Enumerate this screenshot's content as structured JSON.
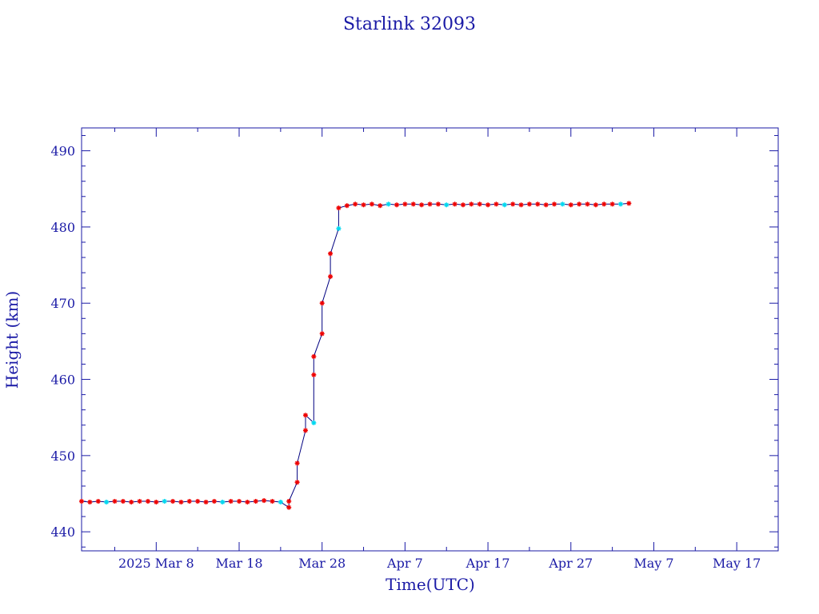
{
  "chart_data": {
    "type": "line",
    "title": "Starlink 32093",
    "xlabel": "Time(UTC)",
    "ylabel": "Height (km)",
    "x_tick_labels": [
      "2025 Mar  8",
      "Mar 18",
      "Mar 28",
      "Apr  7",
      "Apr 17",
      "Apr 27",
      "May  7",
      "May 17"
    ],
    "x_tick_values": [
      "2025-03-08",
      "2025-03-18",
      "2025-03-28",
      "2025-04-07",
      "2025-04-17",
      "2025-04-27",
      "2025-05-07",
      "2025-05-17"
    ],
    "xlim": [
      "2025-02-27",
      "2025-05-22"
    ],
    "y_tick_labels": [
      "440",
      "450",
      "460",
      "470",
      "480",
      "490"
    ],
    "y_ticks": [
      440,
      450,
      460,
      470,
      480,
      490
    ],
    "ylim": [
      437.5,
      493
    ],
    "grid": false,
    "colors": {
      "axes": "#1a1aa6",
      "line": "#000080",
      "marker_primary": "#ee0000",
      "marker_secondary": "#00d8f0"
    },
    "series": [
      {
        "x": [
          "2025-02-27",
          "2025-02-28",
          "2025-03-01",
          "2025-03-02",
          "2025-03-03",
          "2025-03-04",
          "2025-03-05",
          "2025-03-06",
          "2025-03-07",
          "2025-03-08",
          "2025-03-09",
          "2025-03-10",
          "2025-03-11",
          "2025-03-12",
          "2025-03-13",
          "2025-03-14",
          "2025-03-15",
          "2025-03-16",
          "2025-03-17",
          "2025-03-18",
          "2025-03-19",
          "2025-03-20",
          "2025-03-21",
          "2025-03-22",
          "2025-03-23",
          "2025-03-24",
          "2025-03-24",
          "2025-03-25",
          "2025-03-25",
          "2025-03-26",
          "2025-03-26",
          "2025-03-27",
          "2025-03-27",
          "2025-03-27",
          "2025-03-28",
          "2025-03-28",
          "2025-03-29",
          "2025-03-29",
          "2025-03-30",
          "2025-03-30",
          "2025-03-31",
          "2025-04-01",
          "2025-04-02",
          "2025-04-03",
          "2025-04-04",
          "2025-04-05",
          "2025-04-06",
          "2025-04-07",
          "2025-04-08",
          "2025-04-09",
          "2025-04-10",
          "2025-04-11",
          "2025-04-12",
          "2025-04-13",
          "2025-04-14",
          "2025-04-15",
          "2025-04-16",
          "2025-04-17",
          "2025-04-18",
          "2025-04-19",
          "2025-04-20",
          "2025-04-21",
          "2025-04-22",
          "2025-04-23",
          "2025-04-24",
          "2025-04-25",
          "2025-04-26",
          "2025-04-27",
          "2025-04-28",
          "2025-04-29",
          "2025-04-30",
          "2025-05-01",
          "2025-05-02",
          "2025-05-03",
          "2025-05-04"
        ],
        "y": [
          444.0,
          443.9,
          444.0,
          443.9,
          444.0,
          444.0,
          443.9,
          444.0,
          444.0,
          443.9,
          444.0,
          444.0,
          443.9,
          444.0,
          444.0,
          443.9,
          444.0,
          443.9,
          444.0,
          444.0,
          443.9,
          444.0,
          444.1,
          444.0,
          443.9,
          443.2,
          444.0,
          446.5,
          449.0,
          453.3,
          455.3,
          454.3,
          460.6,
          463.0,
          466.0,
          470.0,
          473.5,
          476.5,
          479.8,
          482.5,
          482.8,
          483.0,
          482.9,
          483.0,
          482.8,
          483.0,
          482.9,
          483.0,
          483.0,
          482.9,
          483.0,
          483.0,
          482.9,
          483.0,
          482.9,
          483.0,
          483.0,
          482.9,
          483.0,
          482.9,
          483.0,
          482.9,
          483.0,
          483.0,
          482.9,
          483.0,
          483.0,
          482.9,
          483.0,
          483.0,
          482.9,
          483.0,
          483.0,
          483.0,
          483.1
        ]
      }
    ]
  }
}
